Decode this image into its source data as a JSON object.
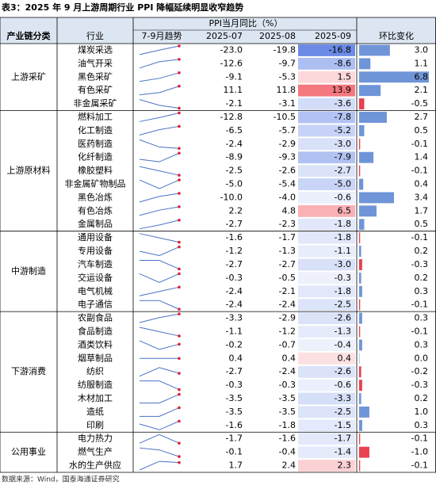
{
  "title": "表3：2025 年 9 月上游周期行业 PPI 降幅延续明显收窄趋势",
  "header": {
    "group": "产业链分类",
    "industry": "行业",
    "trend": "7-9月趋势",
    "span": "PPI当月同比（%）",
    "months": [
      "2025-07",
      "2025-08",
      "2025-09"
    ],
    "change": "环比变化"
  },
  "groups": [
    {
      "name": "上游采矿",
      "rows": [
        {
          "name": "煤炭采选",
          "values": [
            "-23.0",
            "-19.8",
            "-16.8"
          ],
          "change": "3.0"
        },
        {
          "name": "油气开采",
          "values": [
            "-12.6",
            "-9.7",
            "-8.6"
          ],
          "change": "1.1"
        },
        {
          "name": "黑色采矿",
          "values": [
            "-9.1",
            "-5.3",
            "1.5"
          ],
          "change": "6.8"
        },
        {
          "name": "有色采矿",
          "values": [
            "11.1",
            "11.8",
            "13.9"
          ],
          "change": "2.1"
        },
        {
          "name": "非金属采矿",
          "values": [
            "-2.1",
            "-3.1",
            "-3.6"
          ],
          "change": "-0.5"
        }
      ]
    },
    {
      "name": "上游原材料",
      "rows": [
        {
          "name": "燃料加工",
          "values": [
            "-12.8",
            "-10.5",
            "-7.8"
          ],
          "change": "2.7"
        },
        {
          "name": "化工制造",
          "values": [
            "-6.5",
            "-5.7",
            "-5.2"
          ],
          "change": "0.5"
        },
        {
          "name": "医药制造",
          "values": [
            "-2.4",
            "-2.9",
            "-3.0"
          ],
          "change": "-0.1"
        },
        {
          "name": "化纤制造",
          "values": [
            "-8.9",
            "-9.3",
            "-7.9"
          ],
          "change": "1.4"
        },
        {
          "name": "橡胶塑料",
          "values": [
            "-2.5",
            "-2.6",
            "-2.7"
          ],
          "change": "-0.1"
        },
        {
          "name": "非金属矿物制品",
          "values": [
            "-5.0",
            "-5.4",
            "-5.0"
          ],
          "change": "0.4"
        },
        {
          "name": "黑色冶炼",
          "values": [
            "-10.0",
            "-4.0",
            "-0.6"
          ],
          "change": "3.4"
        },
        {
          "name": "有色冶炼",
          "values": [
            "2.2",
            "4.8",
            "6.5"
          ],
          "change": "1.7"
        },
        {
          "name": "金属制品",
          "values": [
            "-2.7",
            "-2.3",
            "-1.8"
          ],
          "change": "0.5"
        }
      ]
    },
    {
      "name": "中游制造",
      "rows": [
        {
          "name": "通用设备",
          "values": [
            "-1.6",
            "-1.7",
            "-1.8"
          ],
          "change": "-0.1"
        },
        {
          "name": "专用设备",
          "values": [
            "-1.2",
            "-1.3",
            "-1.1"
          ],
          "change": "0.2"
        },
        {
          "name": "汽车制造",
          "values": [
            "-2.7",
            "-2.7",
            "-3.0"
          ],
          "change": "-0.3"
        },
        {
          "name": "交运设备",
          "values": [
            "-0.3",
            "-0.5",
            "-0.3"
          ],
          "change": "0.2"
        },
        {
          "name": "电气机械",
          "values": [
            "-2.4",
            "-2.1",
            "-1.8"
          ],
          "change": "0.3"
        },
        {
          "name": "电子通信",
          "values": [
            "-2.4",
            "-2.4",
            "-2.5"
          ],
          "change": "-0.1"
        }
      ]
    },
    {
      "name": "下游消费",
      "rows": [
        {
          "name": "农副食品",
          "values": [
            "-3.3",
            "-2.9",
            "-2.6"
          ],
          "change": "0.3"
        },
        {
          "name": "食品制造",
          "values": [
            "-1.1",
            "-1.2",
            "-1.3"
          ],
          "change": "-0.1"
        },
        {
          "name": "酒类饮料",
          "values": [
            "-0.2",
            "-0.7",
            "-0.4"
          ],
          "change": "0.3"
        },
        {
          "name": "烟草制品",
          "values": [
            "0.4",
            "0.4",
            "0.4"
          ],
          "change": "0.0"
        },
        {
          "name": "纺织",
          "values": [
            "-2.7",
            "-2.4",
            "-2.6"
          ],
          "change": "-0.2"
        },
        {
          "name": "纺服制造",
          "values": [
            "-0.3",
            "-0.3",
            "-0.6"
          ],
          "change": "-0.3"
        },
        {
          "name": "木材加工",
          "values": [
            "-3.5",
            "-3.5",
            "-3.3"
          ],
          "change": "0.2"
        },
        {
          "name": "造纸",
          "values": [
            "-3.5",
            "-3.5",
            "-2.5"
          ],
          "change": "1.0"
        },
        {
          "name": "印刷",
          "values": [
            "-1.6",
            "-1.8",
            "-1.5"
          ],
          "change": "0.3"
        }
      ]
    },
    {
      "name": "公用事业",
      "rows": [
        {
          "name": "电力热力",
          "values": [
            "-1.7",
            "-1.6",
            "-1.7"
          ],
          "change": "-0.1"
        },
        {
          "name": "燃气生产",
          "values": [
            "-0.1",
            "-0.4",
            "-1.4"
          ],
          "change": "-1.0"
        },
        {
          "name": "水的生产供应",
          "values": [
            "1.7",
            "2.4",
            "2.3"
          ],
          "change": "-0.1"
        }
      ]
    }
  ],
  "source": "数据来源：Wind，国泰海通证券研究"
}
